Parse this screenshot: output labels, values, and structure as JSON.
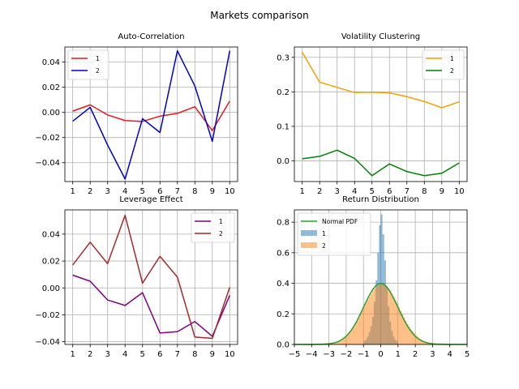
{
  "title": "Markets comparison",
  "chart_data": [
    {
      "id": "autocorr",
      "type": "line",
      "title": "Auto-Correlation",
      "xlabel": "",
      "ylabel": "",
      "x": [
        1,
        2,
        3,
        4,
        5,
        6,
        7,
        8,
        9,
        10
      ],
      "xlim": [
        0.55,
        10.45
      ],
      "ylim": [
        -0.055,
        0.052
      ],
      "xticks": [
        1,
        2,
        3,
        4,
        5,
        6,
        7,
        8,
        9,
        10
      ],
      "yticks": [
        -0.04,
        -0.02,
        0.0,
        0.02,
        0.04
      ],
      "ytick_labels": [
        "−0.04",
        "−0.02",
        "0.00",
        "0.02",
        "0.04"
      ],
      "grid": true,
      "legend_position": "upper left",
      "series": [
        {
          "name": "1",
          "color": "#e31a1c",
          "values": [
            0.001,
            0.006,
            -0.002,
            -0.0065,
            -0.0072,
            -0.003,
            -0.0008,
            0.0045,
            -0.0145,
            0.009
          ]
        },
        {
          "name": "2",
          "color": "#0000cc",
          "values": [
            -0.007,
            0.004,
            -0.026,
            -0.053,
            -0.005,
            -0.016,
            0.049,
            0.021,
            -0.023,
            0.049
          ]
        }
      ]
    },
    {
      "id": "volatility",
      "type": "line",
      "title": "Volatility Clustering",
      "xlabel": "",
      "ylabel": "",
      "x": [
        1,
        2,
        3,
        4,
        5,
        6,
        7,
        8,
        9,
        10
      ],
      "xlim": [
        0.55,
        10.45
      ],
      "ylim": [
        -0.06,
        0.33
      ],
      "xticks": [
        1,
        2,
        3,
        4,
        5,
        6,
        7,
        8,
        9,
        10
      ],
      "yticks": [
        0.0,
        0.1,
        0.2,
        0.3
      ],
      "ytick_labels": [
        "0.0",
        "0.1",
        "0.2",
        "0.3"
      ],
      "grid": true,
      "legend_position": "upper right",
      "series": [
        {
          "name": "1",
          "color": "#f5a000",
          "values": [
            0.315,
            0.228,
            0.213,
            0.198,
            0.199,
            0.197,
            0.186,
            0.172,
            0.154,
            0.171
          ]
        },
        {
          "name": "2",
          "color": "#008000",
          "values": [
            0.006,
            0.013,
            0.031,
            0.007,
            -0.043,
            -0.009,
            -0.031,
            -0.043,
            -0.036,
            -0.006
          ]
        }
      ]
    },
    {
      "id": "leverage",
      "type": "line",
      "title": "Leverage Effect",
      "xlabel": "",
      "ylabel": "",
      "x": [
        1,
        2,
        3,
        4,
        5,
        6,
        7,
        8,
        9,
        10
      ],
      "xlim": [
        0.55,
        10.45
      ],
      "ylim": [
        -0.042,
        0.058
      ],
      "xticks": [
        1,
        2,
        3,
        4,
        5,
        6,
        7,
        8,
        9,
        10
      ],
      "yticks": [
        -0.04,
        -0.02,
        0.0,
        0.02,
        0.04
      ],
      "ytick_labels": [
        "−0.04",
        "−0.02",
        "0.00",
        "0.02",
        "0.04"
      ],
      "grid": true,
      "legend_position": "upper right",
      "series": [
        {
          "name": "1",
          "color": "#800080",
          "values": [
            0.0095,
            0.005,
            -0.009,
            -0.013,
            -0.0035,
            -0.0335,
            -0.0325,
            -0.025,
            -0.036,
            -0.0055
          ]
        },
        {
          "name": "2",
          "color": "#a52a2a",
          "values": [
            0.017,
            0.034,
            0.018,
            0.054,
            0.0035,
            0.0235,
            0.008,
            -0.0365,
            -0.0375,
            0.0005
          ]
        }
      ]
    },
    {
      "id": "returns",
      "type": "histogram",
      "title": "Return Distribution",
      "xlabel": "",
      "ylabel": "",
      "xlim": [
        -5,
        5
      ],
      "ylim": [
        0,
        0.88
      ],
      "xticks": [
        -5,
        -4,
        -3,
        -2,
        -1,
        0,
        1,
        2,
        3,
        4,
        5
      ],
      "xtick_labels": [
        "−5",
        "−4",
        "−3",
        "−2",
        "−1",
        "0",
        "1",
        "2",
        "3",
        "4",
        "5"
      ],
      "yticks": [
        0.0,
        0.2,
        0.4,
        0.6,
        0.8
      ],
      "ytick_labels": [
        "0.0",
        "0.2",
        "0.4",
        "0.6",
        "0.8"
      ],
      "grid": true,
      "legend_position": "upper left",
      "normal_pdf": {
        "name": "Normal PDF",
        "color": "#2ca02c",
        "mean": 0,
        "std": 1
      },
      "series": [
        {
          "name": "1",
          "color": "#1f77b4",
          "opacity": 0.5,
          "bin_edges": [
            -1.0,
            -0.9,
            -0.8,
            -0.7,
            -0.6,
            -0.5,
            -0.4,
            -0.3,
            -0.2,
            -0.1,
            0.0,
            0.1,
            0.2,
            0.3,
            0.4,
            0.5,
            0.6,
            0.7,
            0.8,
            0.9,
            1.0
          ],
          "values": [
            0.02,
            0.03,
            0.05,
            0.08,
            0.12,
            0.18,
            0.28,
            0.42,
            0.6,
            0.78,
            0.85,
            0.72,
            0.55,
            0.38,
            0.25,
            0.15,
            0.09,
            0.05,
            0.03,
            0.02
          ]
        },
        {
          "name": "2",
          "color": "#ff7f0e",
          "opacity": 0.5,
          "bin_edges": [
            -3.0,
            -2.9,
            -2.8,
            -2.7,
            -2.6,
            -2.5,
            -2.4,
            -2.3,
            -2.2,
            -2.1,
            -2.0,
            -1.9,
            -1.8,
            -1.7,
            -1.6,
            -1.5,
            -1.4,
            -1.3,
            -1.2,
            -1.1,
            -1.0,
            -0.9,
            -0.8,
            -0.7,
            -0.6,
            -0.5,
            -0.4,
            -0.3,
            -0.2,
            -0.1,
            0.0,
            0.1,
            0.2,
            0.3,
            0.4,
            0.5,
            0.6,
            0.7,
            0.8,
            0.9,
            1.0,
            1.1,
            1.2,
            1.3,
            1.4,
            1.5,
            1.6,
            1.7,
            1.8,
            1.9,
            2.0,
            2.1,
            2.2,
            2.3,
            2.4,
            2.5,
            2.6,
            2.7,
            2.8,
            2.9,
            3.0
          ],
          "values": [
            0.005,
            0.007,
            0.009,
            0.012,
            0.015,
            0.02,
            0.025,
            0.032,
            0.04,
            0.05,
            0.06,
            0.072,
            0.085,
            0.1,
            0.115,
            0.135,
            0.155,
            0.175,
            0.2,
            0.22,
            0.245,
            0.27,
            0.29,
            0.31,
            0.33,
            0.35,
            0.365,
            0.375,
            0.385,
            0.39,
            0.395,
            0.39,
            0.385,
            0.375,
            0.365,
            0.35,
            0.33,
            0.31,
            0.29,
            0.27,
            0.245,
            0.22,
            0.2,
            0.175,
            0.155,
            0.135,
            0.115,
            0.1,
            0.085,
            0.072,
            0.06,
            0.05,
            0.04,
            0.032,
            0.025,
            0.02,
            0.015,
            0.012,
            0.009,
            0.007
          ]
        }
      ]
    }
  ]
}
